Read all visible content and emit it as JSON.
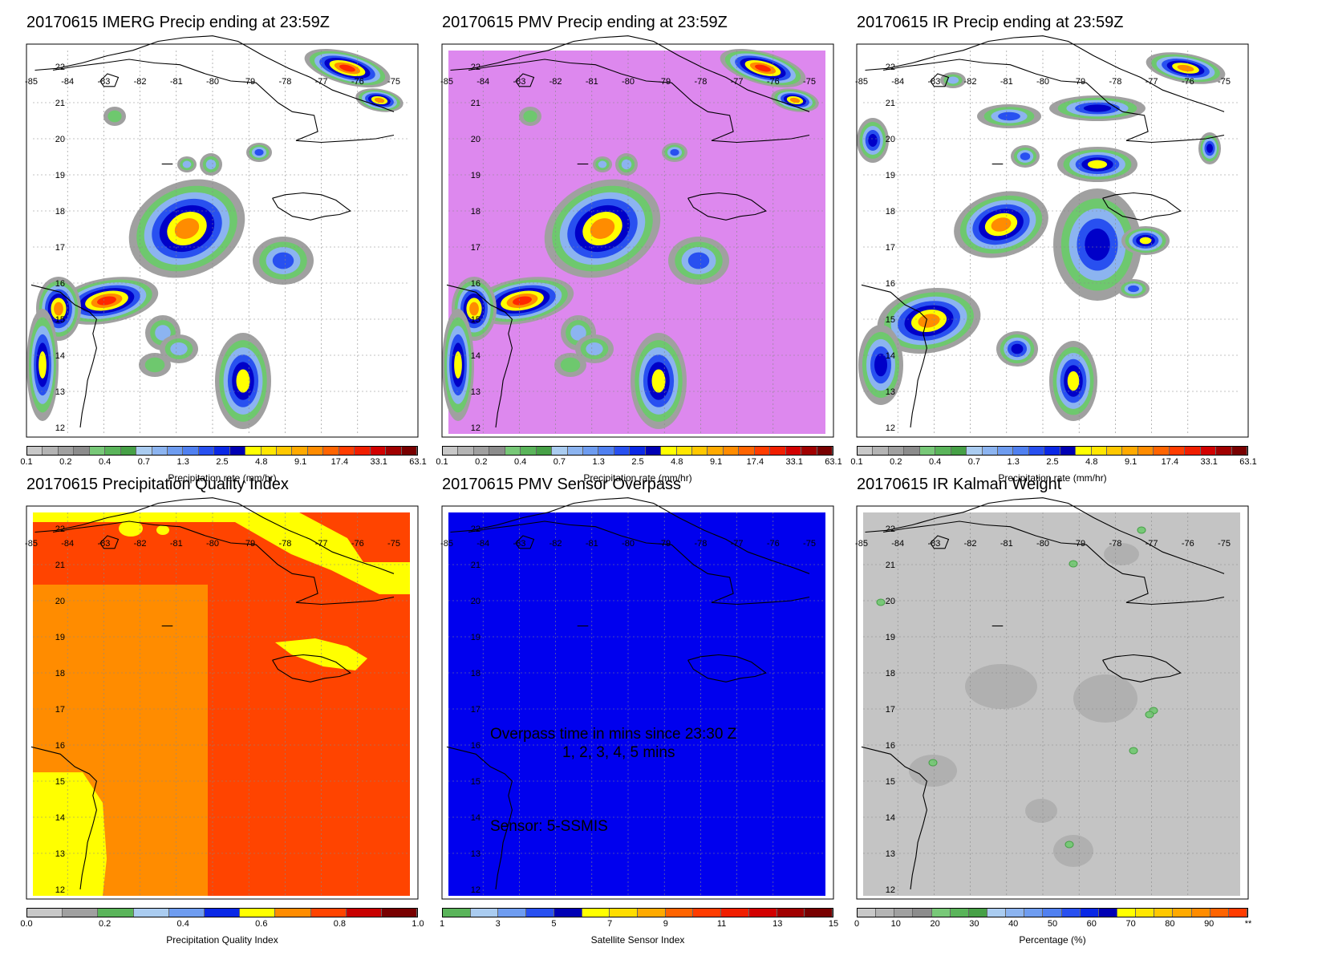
{
  "panels": [
    {
      "title": "20170615 IMERG Precip ending at 23:59Z",
      "background": "#ffffff",
      "colorbar": {
        "colors": [
          "#c8c8c8",
          "#b4b4b4",
          "#a0a0a0",
          "#8c8c8c",
          "#78c878",
          "#5ab45a",
          "#46a046",
          "#aaccf0",
          "#8cb4f0",
          "#6e9cf0",
          "#5080f0",
          "#2850f0",
          "#0a28e6",
          "#0000b4",
          "#ffff00",
          "#ffe600",
          "#ffc800",
          "#ffaa00",
          "#ff8c00",
          "#ff6400",
          "#ff3c00",
          "#f01e00",
          "#d20000",
          "#a00000",
          "#780000"
        ],
        "tick_labels": [
          "0.1",
          "0.2",
          "0.4",
          "0.7",
          "1.3",
          "2.5",
          "4.8",
          "9.1",
          "17.4",
          "33.1",
          "63.1"
        ],
        "label": "Precipitation rate (mm/hr)"
      }
    },
    {
      "title": "20170615 PMV Precip ending at 23:59Z",
      "background": "#dd88ee",
      "colorbar": {
        "colors": [
          "#c8c8c8",
          "#b4b4b4",
          "#a0a0a0",
          "#8c8c8c",
          "#78c878",
          "#5ab45a",
          "#46a046",
          "#aaccf0",
          "#8cb4f0",
          "#6e9cf0",
          "#5080f0",
          "#2850f0",
          "#0a28e6",
          "#0000b4",
          "#ffff00",
          "#ffe600",
          "#ffc800",
          "#ffaa00",
          "#ff8c00",
          "#ff6400",
          "#ff3c00",
          "#f01e00",
          "#d20000",
          "#a00000",
          "#780000"
        ],
        "tick_labels": [
          "0.1",
          "0.2",
          "0.4",
          "0.7",
          "1.3",
          "2.5",
          "4.8",
          "9.1",
          "17.4",
          "33.1",
          "63.1"
        ],
        "label": "Precipitation rate (mm/hr)"
      }
    },
    {
      "title": "20170615 IR Precip ending at 23:59Z",
      "background": "#ffffff",
      "colorbar": {
        "colors": [
          "#c8c8c8",
          "#b4b4b4",
          "#a0a0a0",
          "#8c8c8c",
          "#78c878",
          "#5ab45a",
          "#46a046",
          "#aaccf0",
          "#8cb4f0",
          "#6e9cf0",
          "#5080f0",
          "#2850f0",
          "#0a28e6",
          "#0000b4",
          "#ffff00",
          "#ffe600",
          "#ffc800",
          "#ffaa00",
          "#ff8c00",
          "#ff6400",
          "#ff3c00",
          "#f01e00",
          "#d20000",
          "#a00000",
          "#780000"
        ],
        "tick_labels": [
          "0.1",
          "0.2",
          "0.4",
          "0.7",
          "1.3",
          "2.5",
          "4.8",
          "9.1",
          "17.4",
          "33.1",
          "63.1"
        ],
        "label": "Precipitation rate (mm/hr)"
      }
    },
    {
      "title": "20170615 Precipitation Quality Index",
      "background": "#ff4400",
      "colorbar": {
        "colors": [
          "#c8c8c8",
          "#a0a0a0",
          "#5ab45a",
          "#aaccf0",
          "#6e9cf0",
          "#0a28e6",
          "#ffff00",
          "#ff8c00",
          "#ff4400",
          "#c80000",
          "#780000"
        ],
        "tick_labels": [
          "0.0",
          "0.2",
          "0.4",
          "0.6",
          "0.8",
          "1.0"
        ],
        "label": "Precipitation Quality Index"
      }
    },
    {
      "title": "20170615 PMV Sensor Overpass",
      "background": "#0000ee",
      "colorbar": {
        "colors": [
          "#5ab45a",
          "#aaccf0",
          "#6e9cf0",
          "#2850f0",
          "#0000b4",
          "#ffff00",
          "#ffdd00",
          "#ffaa00",
          "#ff6400",
          "#ff3c00",
          "#f01e00",
          "#d20000",
          "#a00000",
          "#780000"
        ],
        "tick_labels": [
          "1",
          "3",
          "5",
          "7",
          "9",
          "11",
          "13",
          "15"
        ],
        "label": "Satellite Sensor Index"
      },
      "overlay": {
        "line1": "Overpass time in mins since 23:30 Z",
        "line2": "1, 2, 3, 4, 5 mins",
        "line3": "Sensor:   5-SSMIS"
      }
    },
    {
      "title": "20170615 IR Kalman Weight",
      "background": "#c4c4c4",
      "colorbar": {
        "colors": [
          "#c8c8c8",
          "#b4b4b4",
          "#a0a0a0",
          "#8c8c8c",
          "#78c878",
          "#5ab45a",
          "#46a046",
          "#aaccf0",
          "#8cb4f0",
          "#6e9cf0",
          "#5080f0",
          "#2850f0",
          "#0a28e6",
          "#0000b4",
          "#ffff00",
          "#ffe600",
          "#ffc800",
          "#ffaa00",
          "#ff8c00",
          "#ff6400",
          "#ff3c00"
        ],
        "tick_labels": [
          "0",
          "10",
          "20",
          "30",
          "40",
          "50",
          "60",
          "70",
          "80",
          "90",
          "**"
        ],
        "label": "Percentage (%)"
      }
    }
  ],
  "map": {
    "lon_labels": [
      "-85",
      "-84",
      "-83",
      "-82",
      "-81",
      "-80",
      "-79",
      "-78",
      "-77",
      "-76",
      "-75"
    ],
    "lat_labels": [
      "12",
      "13",
      "14",
      "15",
      "16",
      "17",
      "18",
      "19",
      "20",
      "21",
      "22"
    ],
    "coast_color": "#000000"
  }
}
